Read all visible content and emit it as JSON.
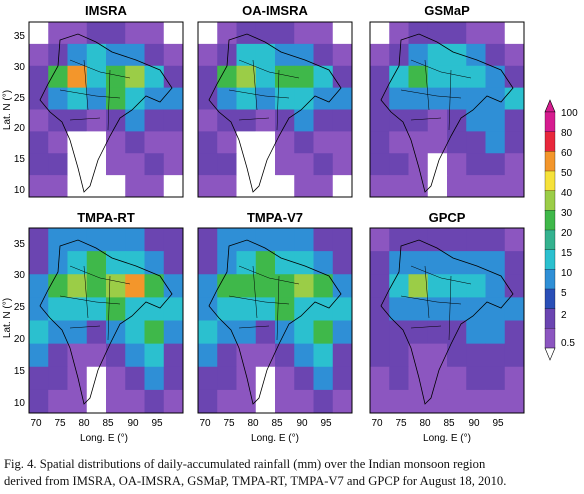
{
  "figure": {
    "panels": [
      {
        "title": "IMSRA",
        "heat": [
          [
            0,
            1,
            1,
            2,
            2,
            1,
            1,
            0
          ],
          [
            1,
            2,
            3,
            4,
            3,
            3,
            2,
            1
          ],
          [
            2,
            5,
            7,
            4,
            5,
            6,
            4,
            2
          ],
          [
            2,
            3,
            4,
            3,
            5,
            4,
            3,
            3
          ],
          [
            1,
            2,
            2,
            1,
            2,
            3,
            2,
            2
          ],
          [
            2,
            1,
            0,
            0,
            1,
            2,
            1,
            1
          ],
          [
            2,
            2,
            0,
            0,
            1,
            1,
            2,
            1
          ],
          [
            1,
            1,
            0,
            0,
            0,
            1,
            1,
            0
          ]
        ]
      },
      {
        "title": "OA-IMSRA",
        "heat": [
          [
            0,
            1,
            2,
            2,
            2,
            1,
            1,
            0
          ],
          [
            1,
            2,
            4,
            4,
            3,
            3,
            2,
            1
          ],
          [
            2,
            5,
            6,
            4,
            5,
            5,
            4,
            2
          ],
          [
            2,
            3,
            4,
            3,
            4,
            4,
            3,
            3
          ],
          [
            1,
            2,
            2,
            1,
            2,
            3,
            2,
            2
          ],
          [
            2,
            1,
            0,
            0,
            1,
            2,
            1,
            1
          ],
          [
            2,
            2,
            0,
            0,
            1,
            1,
            2,
            1
          ],
          [
            1,
            1,
            0,
            0,
            0,
            1,
            1,
            0
          ]
        ]
      },
      {
        "title": "GSMaP",
        "heat": [
          [
            0,
            1,
            2,
            2,
            2,
            1,
            1,
            0
          ],
          [
            1,
            2,
            3,
            4,
            4,
            3,
            2,
            1
          ],
          [
            2,
            4,
            5,
            4,
            4,
            4,
            3,
            2
          ],
          [
            2,
            3,
            3,
            3,
            3,
            3,
            3,
            4
          ],
          [
            2,
            2,
            2,
            1,
            2,
            3,
            3,
            2
          ],
          [
            2,
            1,
            1,
            1,
            2,
            2,
            3,
            2
          ],
          [
            2,
            2,
            1,
            0,
            1,
            2,
            2,
            1
          ],
          [
            1,
            1,
            1,
            0,
            1,
            1,
            1,
            1
          ]
        ]
      },
      {
        "title": "TMPA-RT",
        "heat": [
          [
            2,
            3,
            3,
            3,
            3,
            3,
            2,
            2
          ],
          [
            2,
            3,
            4,
            5,
            4,
            4,
            3,
            2
          ],
          [
            3,
            5,
            6,
            5,
            6,
            7,
            5,
            3
          ],
          [
            3,
            4,
            4,
            4,
            5,
            4,
            4,
            4
          ],
          [
            4,
            3,
            3,
            2,
            3,
            4,
            5,
            3
          ],
          [
            3,
            2,
            1,
            1,
            2,
            3,
            4,
            2
          ],
          [
            2,
            2,
            1,
            0,
            1,
            2,
            3,
            2
          ],
          [
            2,
            1,
            1,
            0,
            1,
            1,
            2,
            1
          ]
        ]
      },
      {
        "title": "TMPA-V7",
        "heat": [
          [
            2,
            3,
            3,
            3,
            3,
            3,
            2,
            2
          ],
          [
            2,
            3,
            4,
            5,
            4,
            4,
            3,
            2
          ],
          [
            3,
            5,
            5,
            5,
            5,
            6,
            5,
            3
          ],
          [
            3,
            4,
            4,
            4,
            5,
            4,
            4,
            4
          ],
          [
            4,
            3,
            3,
            2,
            3,
            4,
            5,
            3
          ],
          [
            3,
            2,
            1,
            1,
            2,
            3,
            4,
            2
          ],
          [
            2,
            2,
            1,
            0,
            1,
            2,
            3,
            2
          ],
          [
            2,
            1,
            1,
            0,
            1,
            1,
            2,
            1
          ]
        ]
      },
      {
        "title": "GPCP",
        "heat": [
          [
            1,
            2,
            2,
            2,
            2,
            2,
            2,
            1
          ],
          [
            2,
            3,
            3,
            3,
            3,
            3,
            3,
            2
          ],
          [
            2,
            4,
            6,
            4,
            4,
            4,
            3,
            2
          ],
          [
            2,
            3,
            3,
            3,
            3,
            3,
            3,
            3
          ],
          [
            2,
            2,
            2,
            2,
            2,
            3,
            3,
            2
          ],
          [
            2,
            2,
            1,
            1,
            2,
            2,
            2,
            2
          ],
          [
            1,
            2,
            1,
            1,
            1,
            2,
            2,
            1
          ],
          [
            1,
            1,
            1,
            1,
            1,
            1,
            1,
            1
          ]
        ]
      }
    ],
    "lat_ticks": [
      "35",
      "30",
      "25",
      "20",
      "15",
      "10"
    ],
    "lon_ticks": [
      "70",
      "75",
      "80",
      "85",
      "90",
      "95"
    ],
    "ylabel": "Lat. N (°)",
    "xlabel": "Long. E (°)",
    "colorbar": {
      "labels": [
        "100",
        "80",
        "60",
        "50",
        "40",
        "30",
        "20",
        "15",
        "10",
        "5",
        "2",
        "0.5"
      ],
      "colors": [
        "#d61c8f",
        "#e8283c",
        "#f3962b",
        "#f6e23a",
        "#9bcd47",
        "#3fb84a",
        "#34b28f",
        "#2bc0cf",
        "#2f8fd6",
        "#2a4fb7",
        "#6b45b1",
        "#8c56c0"
      ]
    }
  },
  "caption": {
    "line1": "Fig. 4. Spatial distributions of daily-accumulated rainfall (mm) over the Indian monsoon region",
    "line2": "derived from IMSRA, OA-IMSRA, GSMaP, TMPA-RT, TMPA-V7 and GPCP for August 18, 2010."
  }
}
